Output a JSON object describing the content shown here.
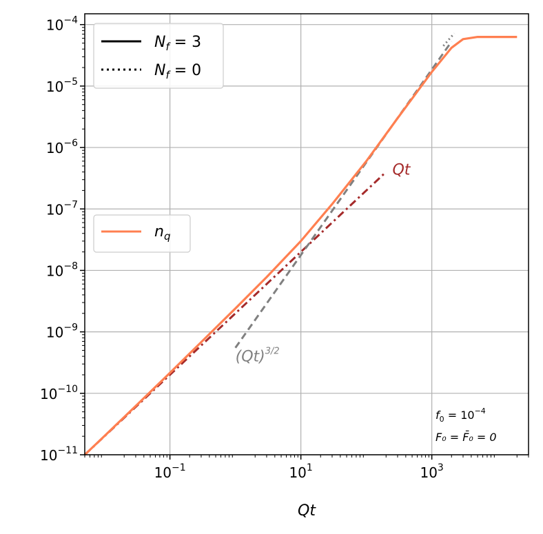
{
  "chart_data": {
    "type": "line",
    "xlabel": "Qt",
    "x_scale": "log",
    "y_scale": "log",
    "xlim": [
      0.005,
      30000
    ],
    "ylim": [
      1e-11,
      0.00015
    ],
    "grid": true,
    "x_ticks": [
      {
        "value": 0.1,
        "base": "10",
        "exp": "−1"
      },
      {
        "value": 10,
        "base": "10",
        "exp": "1"
      },
      {
        "value": 1000,
        "base": "10",
        "exp": "3"
      }
    ],
    "y_ticks": [
      {
        "value": 0.0001,
        "base": "10",
        "exp": "−4"
      },
      {
        "value": 1e-05,
        "base": "10",
        "exp": "−5"
      },
      {
        "value": 1e-06,
        "base": "10",
        "exp": "−6"
      },
      {
        "value": 1e-07,
        "base": "10",
        "exp": "−7"
      },
      {
        "value": 1e-08,
        "base": "10",
        "exp": "−8"
      },
      {
        "value": 1e-09,
        "base": "10",
        "exp": "−9"
      },
      {
        "value": 1e-10,
        "base": "10",
        "exp": "−10"
      },
      {
        "value": 1e-11,
        "base": "10",
        "exp": "−11"
      }
    ],
    "legend_style": {
      "location": "upper-left",
      "entries": [
        {
          "label_main": "N",
          "label_sub": "f",
          "label_rest": " = 3",
          "linestyle": "solid",
          "color": "#000000"
        },
        {
          "label_main": "N",
          "label_sub": "f",
          "label_rest": " = 0",
          "linestyle": "dotted",
          "color": "#000000"
        }
      ]
    },
    "legend_series": {
      "location": "center-left",
      "entries": [
        {
          "label_main": "n",
          "label_sub": "q",
          "color": "#ff7f50"
        }
      ]
    },
    "series": [
      {
        "name": "n_q",
        "style": "solid",
        "color": "#ff7f50",
        "points": [
          [
            0.005,
            1e-11
          ],
          [
            0.01,
            2.02e-11
          ],
          [
            0.03,
            6.2e-11
          ],
          [
            0.1,
            2.15e-10
          ],
          [
            0.3,
            6.8e-10
          ],
          [
            1,
            2.4e-09
          ],
          [
            3,
            7.8e-09
          ],
          [
            10,
            3e-08
          ],
          [
            30,
            1.2e-07
          ],
          [
            100,
            6e-07
          ],
          [
            300,
            3e-06
          ],
          [
            1000,
            1.7e-05
          ],
          [
            2000,
            4.2e-05
          ],
          [
            3000,
            5.8e-05
          ],
          [
            5000,
            6.3e-05
          ],
          [
            10000,
            6.3e-05
          ],
          [
            20000,
            6.3e-05
          ]
        ]
      },
      {
        "name": "n_q (N_f = 0)",
        "style": "dotted",
        "color": "#808080",
        "points": [
          [
            1500,
            4.5e-05
          ],
          [
            2200,
            7.2e-05
          ]
        ]
      },
      {
        "name": "Qt",
        "style": "dashdot",
        "color": "#a52a2a",
        "points": [
          [
            0.005,
            1e-11
          ],
          [
            200,
            4e-07
          ]
        ]
      },
      {
        "name": "(Qt)^(3/2)",
        "style": "dashed",
        "color": "#808080",
        "points": [
          [
            1,
            5.5e-10
          ],
          [
            2000,
            5.3e-05
          ]
        ]
      }
    ],
    "annotations": [
      {
        "text_main": "Qt",
        "text_sup": "",
        "color": "#a52a2a",
        "x": 250,
        "y": 3.6e-07
      },
      {
        "text_main": "(Qt)",
        "text_sup": "3/2",
        "color": "#808080",
        "x": 1.0,
        "y": 3.3e-10
      }
    ],
    "parameters": {
      "line1_main": "f",
      "line1_sub": "0",
      "line1_rest": " = 10",
      "line1_sup": "−4",
      "line2": "F₀ = F̄₀ = 0"
    }
  }
}
